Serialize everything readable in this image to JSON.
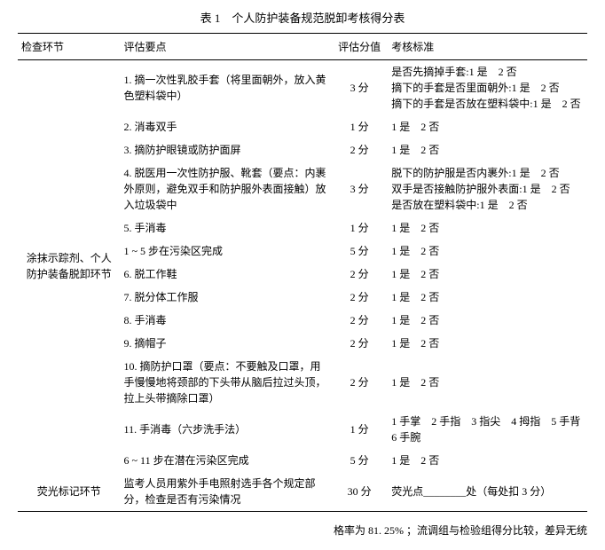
{
  "title": "表 1　个人防护装备规范脱卸考核得分表",
  "headers": {
    "c1": "检查环节",
    "c2": "评估要点",
    "c3": "评估分值",
    "c4": "考核标准"
  },
  "section1_label": "涂抹示踪剂、个人防护装备脱卸环节",
  "rows": [
    {
      "c2": "1. 摘一次性乳胶手套（将里面朝外，放入黄色塑料袋中）",
      "c3": "3 分",
      "c4": "是否先摘掉手套:1 是　2 否\n摘下的手套是否里面朝外:1 是　2 否\n摘下的手套是否放在塑料袋中:1 是　2 否"
    },
    {
      "c2": "2. 消毒双手",
      "c3": "1 分",
      "c4": "1 是　2 否"
    },
    {
      "c2": "3. 摘防护眼镜或防护面屏",
      "c3": "2 分",
      "c4": "1 是　2 否"
    },
    {
      "c2": "4. 脱医用一次性防护服、靴套（要点：内裹外原则，避免双手和防护服外表面接触）放入垃圾袋中",
      "c3": "3 分",
      "c4": "脱下的防护服是否内裹外:1 是　2 否\n双手是否接触防护服外表面:1 是　2 否\n是否放在塑料袋中:1 是　2 否"
    },
    {
      "c2": "5. 手消毒",
      "c3": "1 分",
      "c4": "1 是　2 否"
    },
    {
      "c2": "1 ~ 5 步在污染区完成",
      "c3": "5 分",
      "c4": "1 是　2 否"
    },
    {
      "c2": "6. 脱工作鞋",
      "c3": "2 分",
      "c4": "1 是　2 否"
    },
    {
      "c2": "7. 脱分体工作服",
      "c3": "2 分",
      "c4": "1 是　2 否"
    },
    {
      "c2": "8. 手消毒",
      "c3": "2 分",
      "c4": "1 是　2 否"
    },
    {
      "c2": "9. 摘帽子",
      "c3": "2 分",
      "c4": "1 是　2 否"
    },
    {
      "c2": "10. 摘防护口罩（要点：不要触及口罩，用手慢慢地将颈部的下头带从脑后拉过头顶，拉上头带摘除口罩）",
      "c3": "2 分",
      "c4": "1 是　2 否"
    },
    {
      "c2": "11. 手消毒（六步洗手法）",
      "c3": "1 分",
      "c4": "1 手掌　2 手指　3 指尖　4 拇指　5 手背　6 手腕"
    },
    {
      "c2": "6 ~ 11 步在潜在污染区完成",
      "c3": "5 分",
      "c4": "1 是　2 否"
    }
  ],
  "section2_label": "荧光标记环节",
  "section2_row": {
    "c2": "监考人员用紫外手电照射选手各个规定部分，检查是否有污染情况",
    "c3": "30 分",
    "c4": "荧光点________处（每处扣 3 分）"
  },
  "footer": "格率为 81. 25% ；流调组与检验组得分比较，差异无统",
  "corner": ""
}
